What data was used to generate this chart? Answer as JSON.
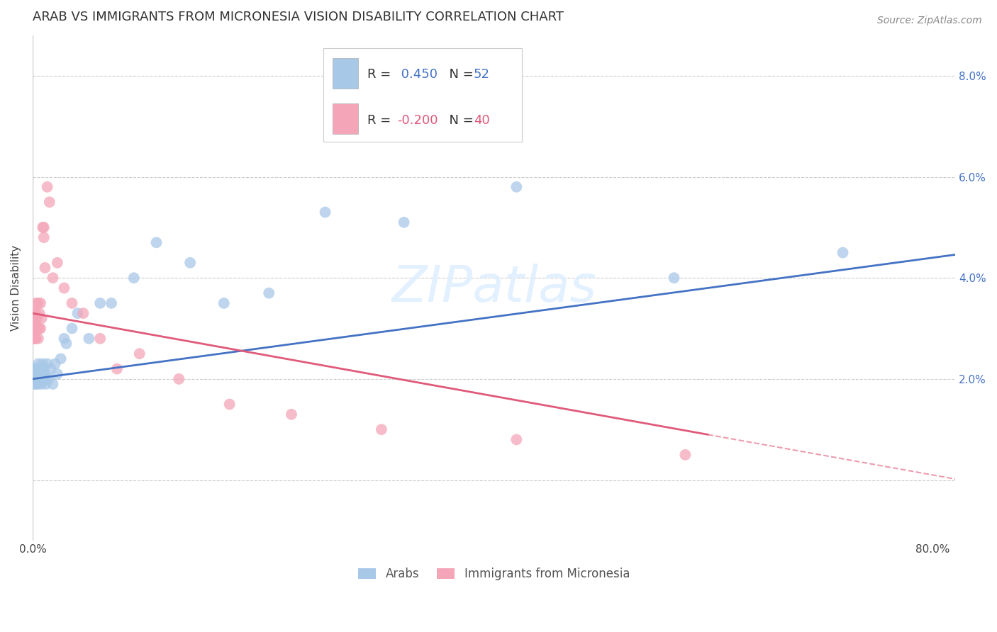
{
  "title": "ARAB VS IMMIGRANTS FROM MICRONESIA VISION DISABILITY CORRELATION CHART",
  "source": "Source: ZipAtlas.com",
  "ylabel": "Vision Disability",
  "blue_color": "#a8c8e8",
  "blue_line_color": "#4472c4",
  "pink_color": "#f4a6b8",
  "pink_line_color": "#e05a7a",
  "background_color": "#ffffff",
  "grid_color": "#cccccc",
  "xlim": [
    0.0,
    0.82
  ],
  "ylim": [
    -0.012,
    0.088
  ],
  "ytick_vals": [
    0.0,
    0.02,
    0.04,
    0.06,
    0.08
  ],
  "ytick_labels": [
    "",
    "2.0%",
    "4.0%",
    "6.0%",
    "8.0%"
  ],
  "arab_x": [
    0.001,
    0.001,
    0.001,
    0.002,
    0.002,
    0.002,
    0.002,
    0.003,
    0.003,
    0.003,
    0.003,
    0.004,
    0.004,
    0.004,
    0.005,
    0.005,
    0.005,
    0.006,
    0.006,
    0.007,
    0.007,
    0.008,
    0.008,
    0.009,
    0.01,
    0.01,
    0.011,
    0.012,
    0.013,
    0.014,
    0.016,
    0.018,
    0.02,
    0.022,
    0.025,
    0.028,
    0.03,
    0.035,
    0.04,
    0.05,
    0.06,
    0.07,
    0.09,
    0.11,
    0.14,
    0.17,
    0.21,
    0.26,
    0.33,
    0.43,
    0.57,
    0.72
  ],
  "arab_y": [
    0.021,
    0.02,
    0.022,
    0.019,
    0.021,
    0.02,
    0.022,
    0.02,
    0.022,
    0.019,
    0.021,
    0.022,
    0.02,
    0.021,
    0.019,
    0.021,
    0.023,
    0.02,
    0.022,
    0.02,
    0.021,
    0.019,
    0.021,
    0.023,
    0.02,
    0.022,
    0.021,
    0.019,
    0.023,
    0.02,
    0.022,
    0.019,
    0.023,
    0.021,
    0.024,
    0.028,
    0.027,
    0.03,
    0.033,
    0.028,
    0.035,
    0.035,
    0.04,
    0.047,
    0.043,
    0.035,
    0.037,
    0.053,
    0.051,
    0.058,
    0.04,
    0.045
  ],
  "micro_x": [
    0.001,
    0.001,
    0.001,
    0.002,
    0.002,
    0.002,
    0.002,
    0.003,
    0.003,
    0.003,
    0.003,
    0.004,
    0.004,
    0.005,
    0.005,
    0.006,
    0.006,
    0.007,
    0.007,
    0.008,
    0.009,
    0.01,
    0.01,
    0.011,
    0.013,
    0.015,
    0.018,
    0.022,
    0.028,
    0.035,
    0.045,
    0.06,
    0.075,
    0.095,
    0.13,
    0.175,
    0.23,
    0.31,
    0.43,
    0.58
  ],
  "micro_y": [
    0.033,
    0.03,
    0.028,
    0.031,
    0.029,
    0.032,
    0.028,
    0.033,
    0.03,
    0.035,
    0.028,
    0.03,
    0.032,
    0.035,
    0.028,
    0.03,
    0.033,
    0.035,
    0.03,
    0.032,
    0.05,
    0.048,
    0.05,
    0.042,
    0.058,
    0.055,
    0.04,
    0.043,
    0.038,
    0.035,
    0.033,
    0.028,
    0.022,
    0.025,
    0.02,
    0.015,
    0.013,
    0.01,
    0.008,
    0.005
  ],
  "title_fontsize": 13,
  "source_fontsize": 10,
  "ylabel_fontsize": 11,
  "tick_fontsize": 11,
  "legend_fontsize": 13
}
